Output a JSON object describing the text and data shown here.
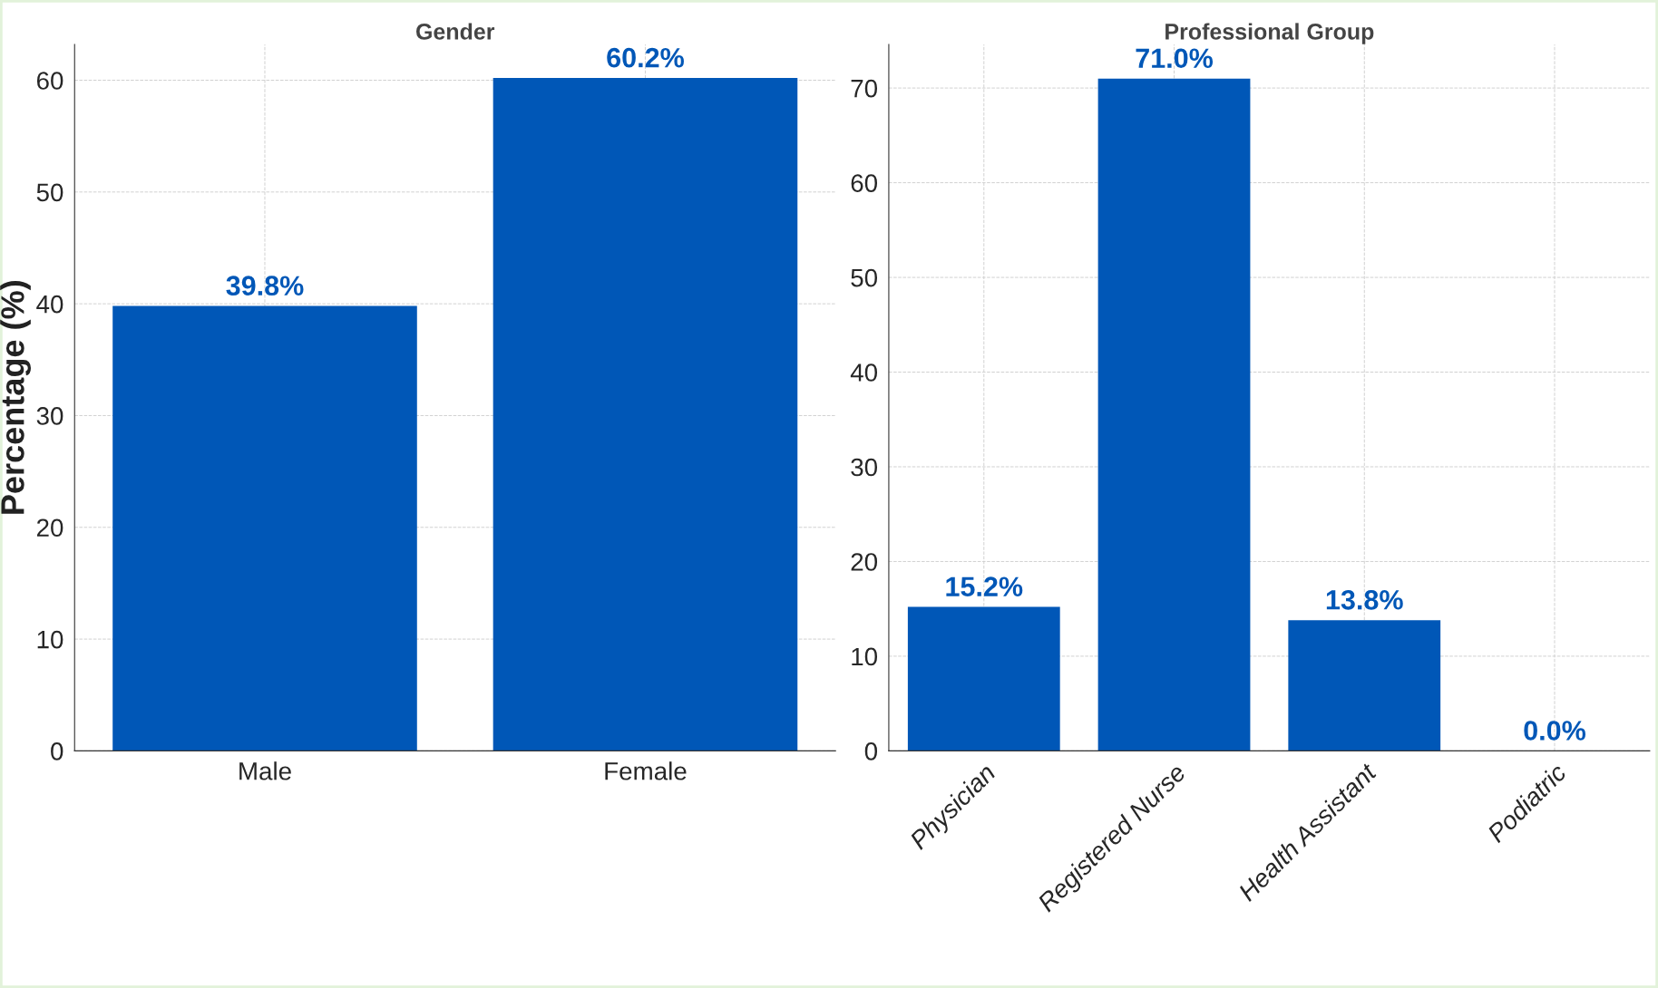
{
  "chart_data": [
    {
      "type": "bar",
      "title": "Gender",
      "ylabel": "Percentage (%)",
      "categories": [
        "Male",
        "Female"
      ],
      "values": [
        39.8,
        60.2
      ],
      "color": "#0057b7",
      "value_labels": [
        "39.8%",
        "60.2%"
      ],
      "ylim": [
        0,
        63.2
      ],
      "yticks": [
        0,
        10,
        20,
        30,
        40,
        50,
        60
      ],
      "grid": true
    },
    {
      "type": "bar",
      "title": "Professional Group",
      "categories": [
        "Physician",
        "Registered Nurse",
        "Health Assistant",
        "Podiatric"
      ],
      "values": [
        15.2,
        71.0,
        13.8,
        0.0
      ],
      "color": "#0057b7",
      "value_labels": [
        "15.2%",
        "71.0%",
        "13.8%",
        "0.0%"
      ],
      "ylim": [
        0,
        74.6
      ],
      "yticks": [
        0,
        10,
        20,
        30,
        40,
        50,
        60,
        70
      ],
      "grid": true
    }
  ]
}
